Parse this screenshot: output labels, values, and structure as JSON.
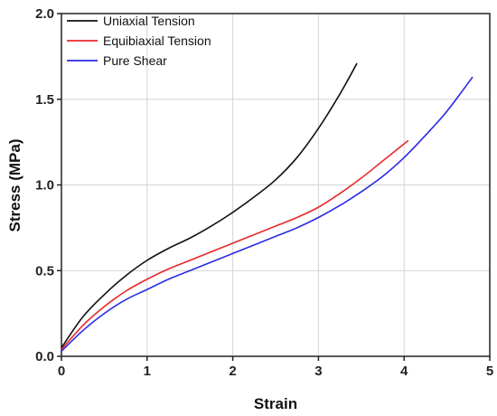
{
  "chart_data": {
    "type": "line",
    "title": "",
    "xlabel": "Strain",
    "ylabel": "Stress (MPa)",
    "xlim": [
      0,
      5
    ],
    "ylim": [
      0,
      2.0
    ],
    "xticks": [
      "0",
      "1",
      "2",
      "3",
      "4",
      "5"
    ],
    "yticks": [
      "0.0",
      "0.5",
      "1.0",
      "1.5",
      "2.0"
    ],
    "grid": true,
    "legend_position": "top-left",
    "series": [
      {
        "name": "Uniaxial Tension",
        "color": "#111111",
        "x": [
          0,
          0.25,
          0.5,
          0.75,
          1.0,
          1.25,
          1.5,
          1.75,
          2.0,
          2.25,
          2.5,
          2.75,
          3.0,
          3.25,
          3.45
        ],
        "y": [
          0.05,
          0.23,
          0.36,
          0.47,
          0.56,
          0.63,
          0.69,
          0.76,
          0.84,
          0.93,
          1.03,
          1.16,
          1.33,
          1.53,
          1.71
        ]
      },
      {
        "name": "Equibiaxial Tension",
        "color": "#e8282a",
        "x": [
          0,
          0.25,
          0.5,
          0.75,
          1.0,
          1.25,
          1.5,
          1.75,
          2.0,
          2.25,
          2.5,
          2.75,
          3.0,
          3.25,
          3.5,
          3.75,
          4.05
        ],
        "y": [
          0.04,
          0.18,
          0.29,
          0.38,
          0.45,
          0.51,
          0.56,
          0.61,
          0.66,
          0.71,
          0.76,
          0.81,
          0.87,
          0.95,
          1.04,
          1.14,
          1.26
        ]
      },
      {
        "name": "Pure Shear",
        "color": "#2a2ae8",
        "x": [
          0,
          0.25,
          0.5,
          0.75,
          1.0,
          1.25,
          1.5,
          1.75,
          2.0,
          2.25,
          2.5,
          2.75,
          3.0,
          3.25,
          3.5,
          3.75,
          4.0,
          4.25,
          4.5,
          4.8
        ],
        "y": [
          0.03,
          0.15,
          0.25,
          0.33,
          0.39,
          0.45,
          0.5,
          0.55,
          0.6,
          0.65,
          0.7,
          0.75,
          0.81,
          0.88,
          0.96,
          1.05,
          1.16,
          1.29,
          1.43,
          1.63
        ]
      }
    ]
  }
}
